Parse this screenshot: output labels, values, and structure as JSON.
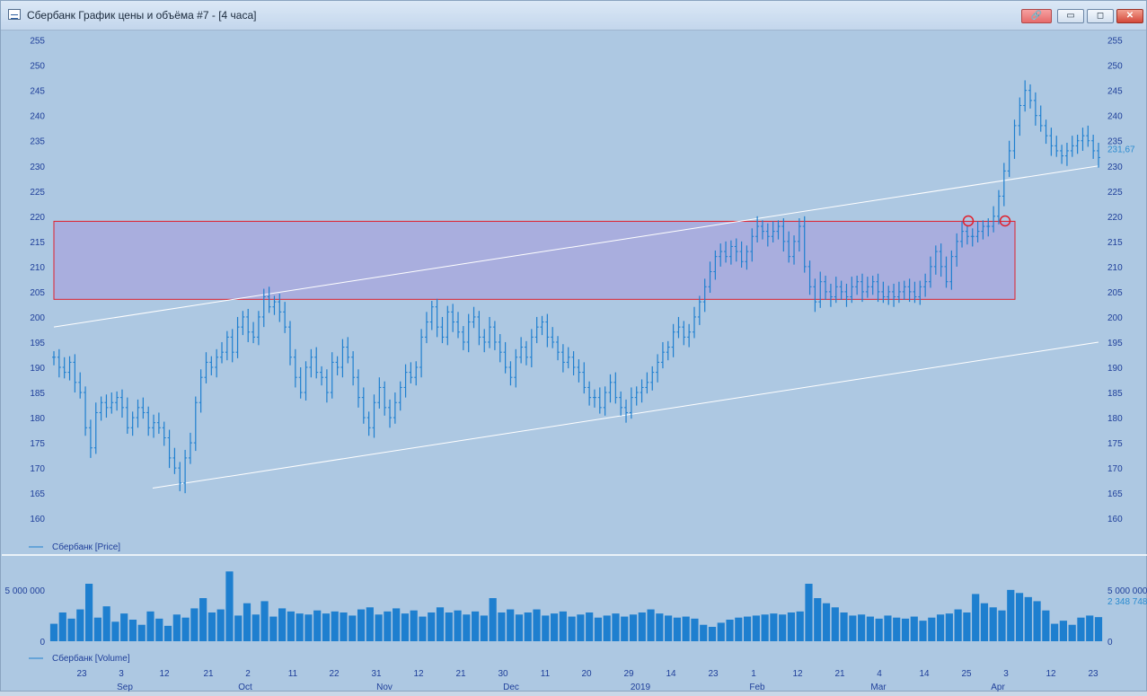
{
  "window": {
    "title": "Сбербанк График цены и объёма #7 - [4 часа]",
    "buttons": {
      "link": "🔗",
      "minimize": "▭",
      "maximize": "◻",
      "close": "✕"
    }
  },
  "colors": {
    "background": "#adc8e2",
    "series": "#1e7fcf",
    "axis_text": "#1f3f9a",
    "band_fill": "#a8a9dd",
    "band_border": "#e0202c",
    "trendline": "#ffffff",
    "price_label": "#2a8bd0"
  },
  "chart_data": [
    {
      "type": "line",
      "title": "",
      "legend": "Сбербанк [Price]",
      "legend_position": "bottom-left",
      "ylim": [
        157,
        256
      ],
      "y_ticks": [
        160,
        165,
        170,
        175,
        180,
        185,
        190,
        195,
        200,
        205,
        210,
        215,
        220,
        225,
        230,
        235,
        240,
        245,
        250,
        255
      ],
      "last_value_label": "231,67",
      "series": [
        {
          "values": [
            192,
            190,
            189,
            191,
            187,
            185,
            178,
            174,
            181,
            183,
            182,
            183,
            184,
            182,
            178,
            180,
            182,
            181,
            178,
            179,
            178,
            176,
            172,
            170,
            167,
            172,
            175,
            183,
            188,
            191,
            190,
            192,
            193,
            196,
            193,
            198,
            200,
            197,
            196,
            200,
            204,
            202,
            203,
            201,
            198,
            192,
            188,
            185,
            190,
            192,
            189,
            188,
            185,
            191,
            190,
            194,
            192,
            188,
            184,
            180,
            178,
            183,
            186,
            182,
            180,
            183,
            186,
            189,
            188,
            190,
            196,
            199,
            202,
            198,
            196,
            201,
            199,
            197,
            195,
            199,
            200,
            196,
            195,
            198,
            195,
            193,
            190,
            188,
            192,
            194,
            192,
            196,
            198,
            199,
            196,
            195,
            193,
            191,
            192,
            190,
            189,
            186,
            184,
            184,
            182,
            185,
            187,
            184,
            182,
            181,
            184,
            185,
            186,
            187,
            189,
            191,
            193,
            194,
            197,
            198,
            196,
            197,
            200,
            203,
            206,
            209,
            212,
            213,
            212,
            214,
            213,
            211,
            213,
            216,
            218,
            217,
            216,
            217,
            218,
            215,
            212,
            215,
            218,
            210,
            206,
            203,
            207,
            205,
            204,
            206,
            205,
            204,
            206,
            207,
            205,
            206,
            207,
            205,
            204,
            205,
            204,
            205,
            206,
            205,
            204,
            206,
            207,
            210,
            213,
            210,
            207,
            212,
            215,
            217,
            216,
            216,
            217,
            218,
            218,
            220,
            224,
            229,
            233,
            238,
            242,
            245,
            243,
            240,
            238,
            236,
            234,
            233,
            232,
            233,
            234,
            235,
            236,
            235,
            233,
            231.67
          ]
        }
      ]
    },
    {
      "type": "bar",
      "title": "",
      "legend": "Сбербанк [Volume]",
      "legend_position": "bottom-left",
      "ylim": [
        0,
        7000000
      ],
      "y_ticks": [
        0,
        5000000
      ],
      "y_tick_labels": [
        "0",
        "5 000 000"
      ],
      "last_value_label": "2 348 748",
      "values": [
        1700000,
        2800000,
        2200000,
        3100000,
        5600000,
        2300000,
        3400000,
        1900000,
        2700000,
        2100000,
        1600000,
        2900000,
        2200000,
        1500000,
        2600000,
        2300000,
        3200000,
        4200000,
        2800000,
        3100000,
        6800000,
        2500000,
        3700000,
        2600000,
        3900000,
        2400000,
        3200000,
        2900000,
        2700000,
        2600000,
        3000000,
        2700000,
        2900000,
        2800000,
        2500000,
        3100000,
        3300000,
        2600000,
        2900000,
        3200000,
        2700000,
        3000000,
        2400000,
        2800000,
        3300000,
        2800000,
        3000000,
        2600000,
        2900000,
        2500000,
        4200000,
        2800000,
        3100000,
        2600000,
        2800000,
        3100000,
        2500000,
        2700000,
        2900000,
        2400000,
        2600000,
        2800000,
        2300000,
        2500000,
        2700000,
        2400000,
        2600000,
        2800000,
        3100000,
        2700000,
        2500000,
        2300000,
        2400000,
        2200000,
        1600000,
        1400000,
        1800000,
        2100000,
        2300000,
        2400000,
        2500000,
        2600000,
        2700000,
        2600000,
        2800000,
        2900000,
        5600000,
        4200000,
        3700000,
        3300000,
        2800000,
        2500000,
        2600000,
        2400000,
        2200000,
        2500000,
        2300000,
        2200000,
        2400000,
        2000000,
        2300000,
        2600000,
        2700000,
        3100000,
        2800000,
        4600000,
        3700000,
        3300000,
        3000000,
        5000000,
        4700000,
        4300000,
        3900000,
        3000000,
        1700000,
        2000000,
        1600000,
        2300000,
        2500000,
        2348748
      ]
    }
  ],
  "x_axis": {
    "day_labels": [
      "23",
      "3",
      "12",
      "21",
      "2",
      "11",
      "22",
      "31",
      "12",
      "21",
      "30",
      "11",
      "20",
      "29",
      "14",
      "23",
      "1",
      "12",
      "21",
      "4",
      "14",
      "25",
      "3",
      "12",
      "23"
    ],
    "month_labels": [
      "Sep",
      "Oct",
      "Nov",
      "Dec",
      "2019",
      "Feb",
      "Mar",
      "Apr"
    ]
  },
  "annotations": {
    "support_band": {
      "low": 203.5,
      "high": 219
    },
    "trend_upper": {
      "from": 198,
      "to": 230
    },
    "trend_lower": {
      "from": 166,
      "to": 195
    }
  }
}
